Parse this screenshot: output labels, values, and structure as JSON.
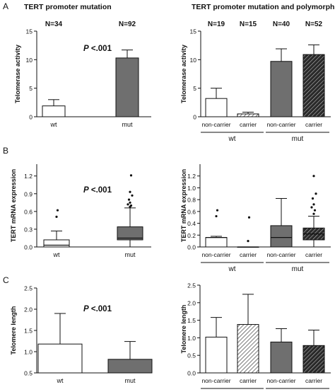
{
  "panel_letters": [
    "A",
    "B",
    "C"
  ],
  "stats": {
    "p_prefix": "P",
    "p_value": " <.001"
  },
  "groups": {
    "wt": "wt",
    "mut": "mut",
    "non_carrier": "non-carrier",
    "carrier": "carrier"
  },
  "colors": {
    "light": "#ffffff",
    "dark": "#6f6f6f",
    "axis": "#111111"
  },
  "chart_data": [
    {
      "id": "A1",
      "type": "bar",
      "title": "TERT promoter mutation",
      "ylabel": "Telomerase activity",
      "ylim": [
        0,
        15
      ],
      "yticks": [
        0,
        5,
        10,
        15
      ],
      "categories": [
        "wt",
        "mut"
      ],
      "values": [
        1.9,
        10.3
      ],
      "errors": [
        1.1,
        1.4
      ],
      "n_labels": [
        "N=34",
        "N=92"
      ],
      "fills": [
        "white",
        "dark"
      ]
    },
    {
      "id": "A2",
      "type": "bar",
      "title": "TERT promoter mutation and  polymorphism",
      "ylabel": "Telomerase activity",
      "ylim": [
        0,
        15
      ],
      "yticks": [
        0,
        5,
        10,
        15
      ],
      "categories": [
        "non-carrier",
        "carrier",
        "non-carrier",
        "carrier"
      ],
      "groups": [
        "wt",
        "mut"
      ],
      "values": [
        3.2,
        0.5,
        9.7,
        10.9
      ],
      "errors": [
        1.8,
        0.3,
        2.2,
        1.7
      ],
      "n_labels": [
        "N=19",
        "N=15",
        "N=40",
        "N=52"
      ],
      "fills": [
        "white",
        "hatch",
        "dark",
        "darkhatch"
      ]
    },
    {
      "id": "B1",
      "type": "box",
      "ylabel": "TERT mRNA expression",
      "ylim": [
        0,
        1.4
      ],
      "yticks": [
        0.0,
        0.3,
        0.6,
        0.9,
        1.2
      ],
      "yticklabels": [
        "0.0",
        "0.3",
        "0.6",
        "0.9",
        "1.2"
      ],
      "categories": [
        "wt",
        "mut"
      ],
      "boxes": [
        {
          "min": 0.0,
          "q1": 0.0,
          "median": 0.03,
          "q3": 0.12,
          "max": 0.27,
          "outliers": [
            0.51,
            0.62
          ]
        },
        {
          "min": 0.0,
          "q1": 0.12,
          "median": 0.15,
          "q3": 0.34,
          "max": 0.66,
          "outliers": [
            0.68,
            0.7,
            0.72,
            0.75,
            0.8,
            0.87,
            0.93,
            1.21
          ]
        }
      ],
      "fills": [
        "white",
        "dark"
      ]
    },
    {
      "id": "B2",
      "type": "box",
      "ylabel": "TERT mRNA expression",
      "ylim": [
        0,
        1.4
      ],
      "yticks": [
        0.0,
        0.2,
        0.4,
        0.6,
        0.8,
        1.0,
        1.2
      ],
      "yticklabels": [
        "0.0",
        "0.2",
        "0.4",
        "0.6",
        "0.8",
        "1.0",
        "1.2"
      ],
      "categories": [
        "non-carrier",
        "carrier",
        "non-carrier",
        "carrier"
      ],
      "groups": [
        "wt",
        "mut"
      ],
      "boxes": [
        {
          "min": 0.0,
          "q1": 0.0,
          "median": 0.16,
          "q3": 0.16,
          "max": 0.18,
          "outliers": [
            0.52,
            0.62
          ]
        },
        {
          "min": 0.0,
          "q1": 0.0,
          "median": 0.0,
          "q3": 0.0,
          "max": 0.0,
          "outliers": [
            0.1,
            0.5
          ]
        },
        {
          "min": 0.0,
          "q1": 0.0,
          "median": 0.16,
          "q3": 0.36,
          "max": 0.82,
          "outliers": []
        },
        {
          "min": 0.0,
          "q1": 0.12,
          "median": 0.22,
          "q3": 0.32,
          "max": 0.52,
          "outliers": [
            0.56,
            0.62,
            0.67,
            0.72,
            0.82,
            0.9,
            1.2
          ]
        }
      ],
      "fills": [
        "white",
        "white",
        "dark",
        "darkhatch"
      ]
    },
    {
      "id": "C1",
      "type": "bar",
      "ylabel": "Telomere length",
      "ylim": [
        0.5,
        2.5
      ],
      "yticks": [
        0.5,
        1.0,
        1.5,
        2.0,
        2.5
      ],
      "yticklabels": [
        "0.5",
        "1.0",
        "1.5",
        "2.0",
        "2.5"
      ],
      "categories": [
        "wt",
        "mut"
      ],
      "values": [
        1.18,
        0.82
      ],
      "errors": [
        0.72,
        0.42
      ],
      "fills": [
        "white",
        "dark"
      ]
    },
    {
      "id": "C2",
      "type": "bar",
      "ylabel": "Telomere length",
      "ylim": [
        0,
        2.5
      ],
      "yticks": [
        0.0,
        0.5,
        1.0,
        1.5,
        2.0,
        2.5
      ],
      "yticklabels": [
        "0.0",
        "0.5",
        "1.0",
        "1.5",
        "2.0",
        "2.5"
      ],
      "categories": [
        "non-carrier",
        "carrier",
        "non-carrier",
        "carrier"
      ],
      "groups": [
        "wt",
        "mut"
      ],
      "values": [
        1.02,
        1.38,
        0.88,
        0.78
      ],
      "errors": [
        0.56,
        0.86,
        0.38,
        0.44
      ],
      "fills": [
        "white",
        "hatch",
        "dark",
        "darkhatch"
      ]
    }
  ]
}
